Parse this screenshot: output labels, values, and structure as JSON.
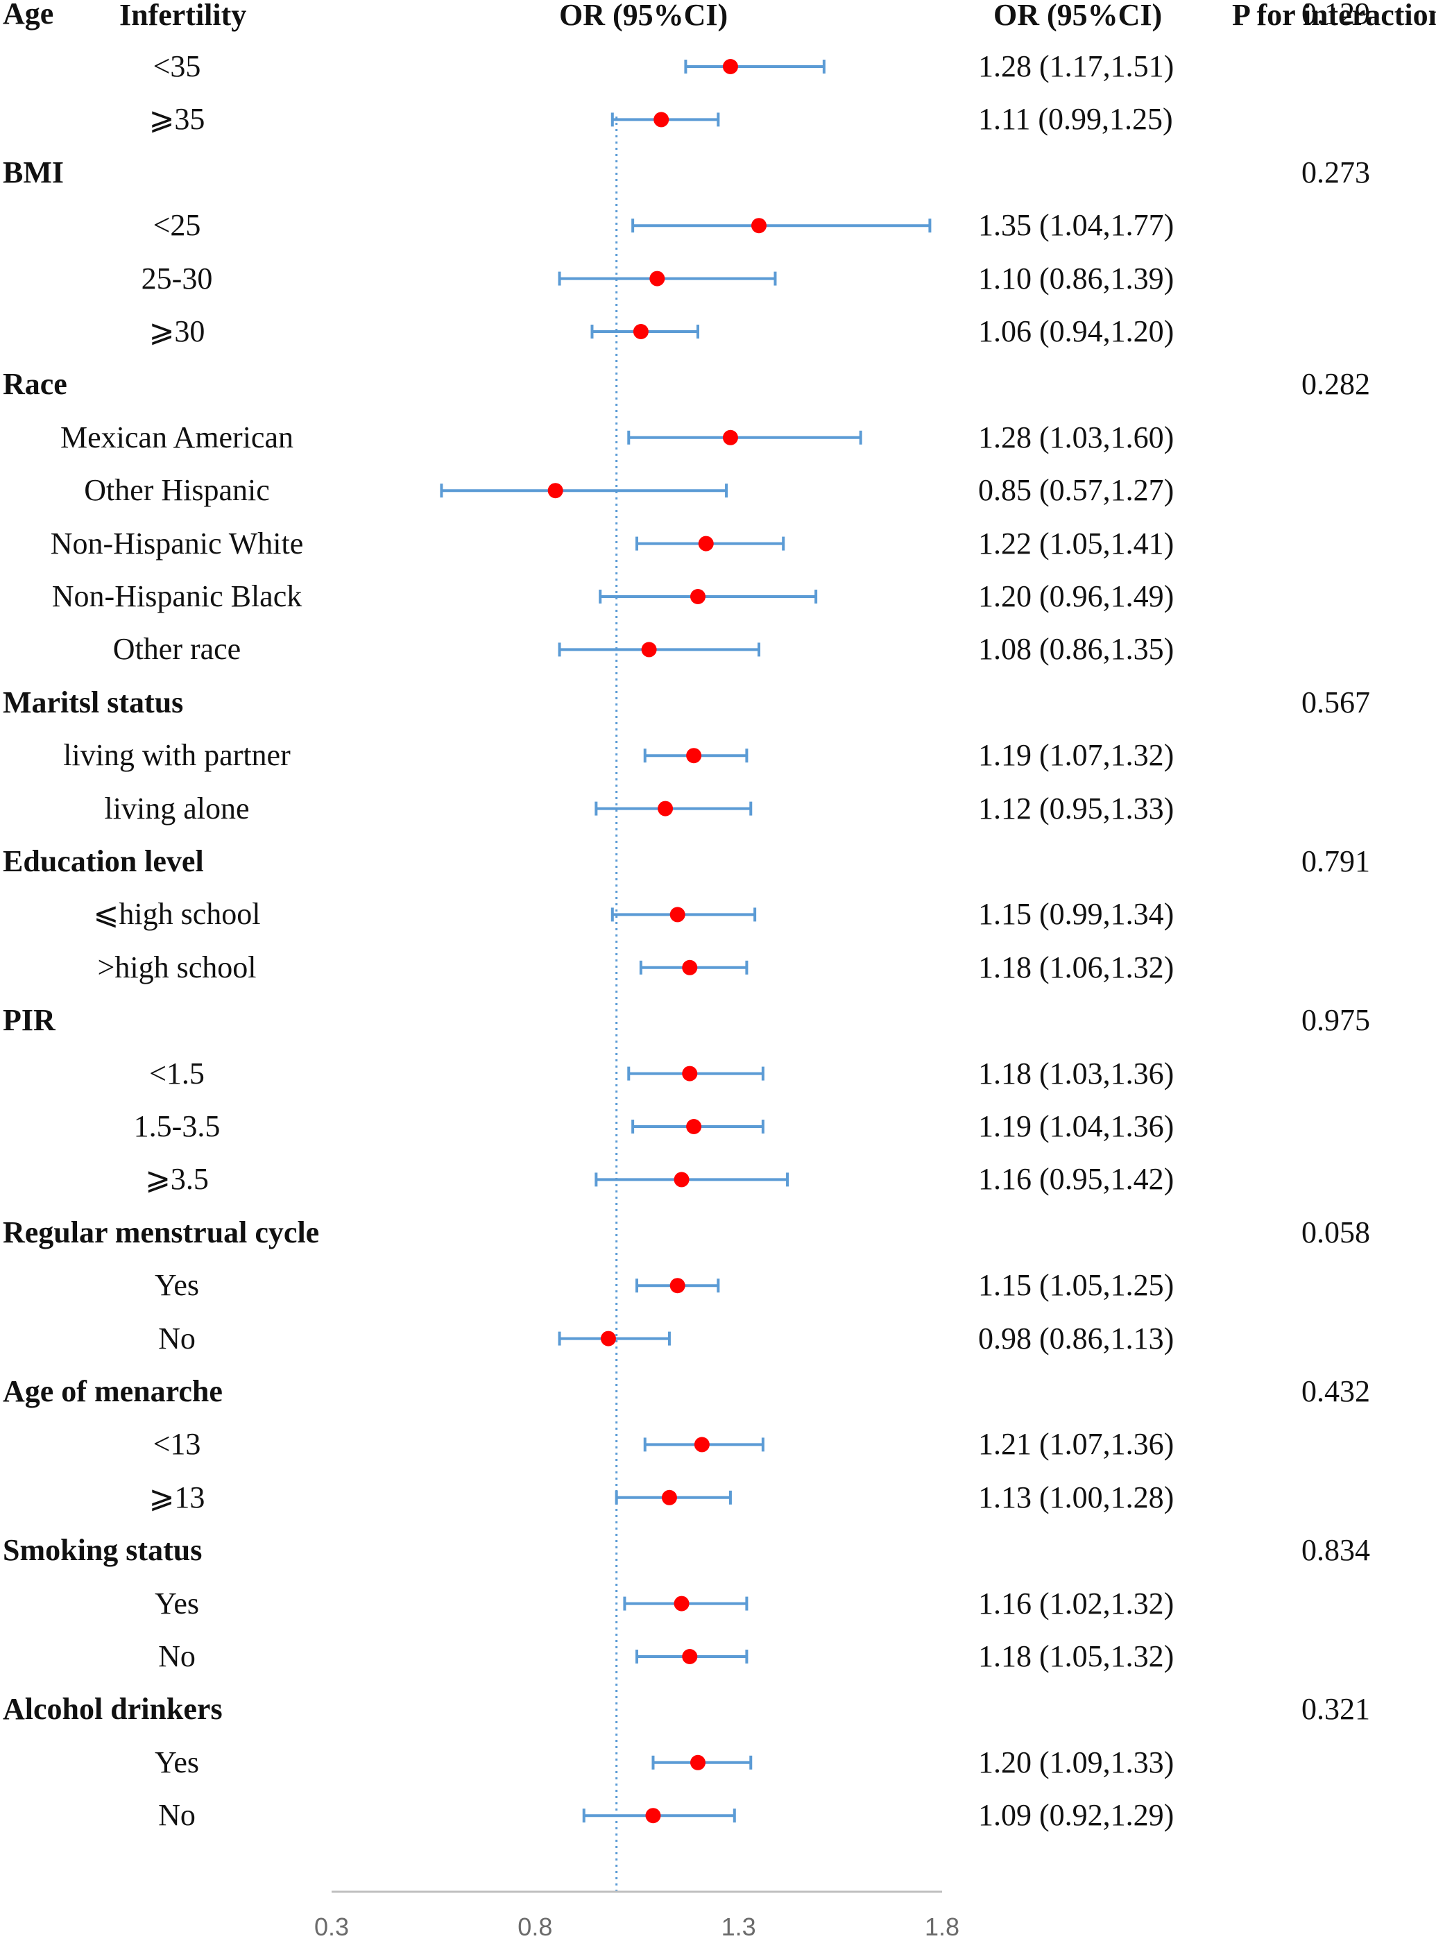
{
  "headers": {
    "label": "Infertility",
    "plot": "OR (95%CI)",
    "or": "OR (95%CI)",
    "p": "P for interaction"
  },
  "colors": {
    "ci_line": "#5b9bd5",
    "point": "#ff0000",
    "ref_line": "#5b9bd5",
    "axis": "#bfbfbf"
  },
  "chart_data": {
    "type": "forest",
    "xlabel": "",
    "ylabel": "",
    "reference_line": 1.0,
    "xlim": [
      0.3,
      1.8
    ],
    "ticks": [
      "0.3",
      "0.8",
      "1.3",
      "1.8"
    ],
    "groups": [
      {
        "name": "Age",
        "p": "0.129",
        "rows": [
          {
            "label": "<35",
            "or": 1.28,
            "lo": 1.17,
            "hi": 1.51,
            "text": "1.28 (1.17,1.51)"
          },
          {
            "label": "⩾35",
            "or": 1.11,
            "lo": 0.99,
            "hi": 1.25,
            "text": "1.11 (0.99,1.25)"
          }
        ]
      },
      {
        "name": "BMI",
        "p": "0.273",
        "rows": [
          {
            "label": "<25",
            "or": 1.35,
            "lo": 1.04,
            "hi": 1.77,
            "text": "1.35 (1.04,1.77)"
          },
          {
            "label": "25-30",
            "or": 1.1,
            "lo": 0.86,
            "hi": 1.39,
            "text": "1.10 (0.86,1.39)"
          },
          {
            "label": "⩾30",
            "or": 1.06,
            "lo": 0.94,
            "hi": 1.2,
            "text": "1.06 (0.94,1.20)"
          }
        ]
      },
      {
        "name": "Race",
        "p": "0.282",
        "rows": [
          {
            "label": "Mexican American",
            "or": 1.28,
            "lo": 1.03,
            "hi": 1.6,
            "text": "1.28 (1.03,1.60)"
          },
          {
            "label": "Other Hispanic",
            "or": 0.85,
            "lo": 0.57,
            "hi": 1.27,
            "text": "0.85 (0.57,1.27)"
          },
          {
            "label": "Non-Hispanic White",
            "or": 1.22,
            "lo": 1.05,
            "hi": 1.41,
            "text": "1.22 (1.05,1.41)"
          },
          {
            "label": "Non-Hispanic Black",
            "or": 1.2,
            "lo": 0.96,
            "hi": 1.49,
            "text": "1.20 (0.96,1.49)"
          },
          {
            "label": "Other race",
            "or": 1.08,
            "lo": 0.86,
            "hi": 1.35,
            "text": "1.08 (0.86,1.35)"
          }
        ]
      },
      {
        "name": "Maritsl status",
        "p": "0.567",
        "rows": [
          {
            "label": "living with partner",
            "or": 1.19,
            "lo": 1.07,
            "hi": 1.32,
            "text": "1.19 (1.07,1.32)"
          },
          {
            "label": "living alone",
            "or": 1.12,
            "lo": 0.95,
            "hi": 1.33,
            "text": "1.12 (0.95,1.33)"
          }
        ]
      },
      {
        "name": "Education level",
        "p": "0.791",
        "rows": [
          {
            "label": "⩽high school",
            "or": 1.15,
            "lo": 0.99,
            "hi": 1.34,
            "text": "1.15 (0.99,1.34)"
          },
          {
            "label": ">high school",
            "or": 1.18,
            "lo": 1.06,
            "hi": 1.32,
            "text": "1.18 (1.06,1.32)"
          }
        ]
      },
      {
        "name": "PIR",
        "p": "0.975",
        "rows": [
          {
            "label": "<1.5",
            "or": 1.18,
            "lo": 1.03,
            "hi": 1.36,
            "text": "1.18 (1.03,1.36)"
          },
          {
            "label": "1.5-3.5",
            "or": 1.19,
            "lo": 1.04,
            "hi": 1.36,
            "text": "1.19 (1.04,1.36)"
          },
          {
            "label": "⩾3.5",
            "or": 1.16,
            "lo": 0.95,
            "hi": 1.42,
            "text": "1.16 (0.95,1.42)"
          }
        ]
      },
      {
        "name": "Regular menstrual cycle",
        "p": "0.058",
        "rows": [
          {
            "label": "Yes",
            "or": 1.15,
            "lo": 1.05,
            "hi": 1.25,
            "text": "1.15 (1.05,1.25)"
          },
          {
            "label": "No",
            "or": 0.98,
            "lo": 0.86,
            "hi": 1.13,
            "text": "0.98 (0.86,1.13)"
          }
        ]
      },
      {
        "name": "Age of menarche",
        "p": "0.432",
        "rows": [
          {
            "label": "<13",
            "or": 1.21,
            "lo": 1.07,
            "hi": 1.36,
            "text": "1.21 (1.07,1.36)"
          },
          {
            "label": "⩾13",
            "or": 1.13,
            "lo": 1.0,
            "hi": 1.28,
            "text": "1.13 (1.00,1.28)"
          }
        ]
      },
      {
        "name": "Smoking status",
        "p": "0.834",
        "rows": [
          {
            "label": "Yes",
            "or": 1.16,
            "lo": 1.02,
            "hi": 1.32,
            "text": "1.16 (1.02,1.32)"
          },
          {
            "label": "No",
            "or": 1.18,
            "lo": 1.05,
            "hi": 1.32,
            "text": "1.18 (1.05,1.32)"
          }
        ]
      },
      {
        "name": "Alcohol drinkers",
        "p": "0.321",
        "rows": [
          {
            "label": "Yes",
            "or": 1.2,
            "lo": 1.09,
            "hi": 1.33,
            "text": "1.20 (1.09,1.33)"
          },
          {
            "label": "No",
            "or": 1.09,
            "lo": 0.92,
            "hi": 1.29,
            "text": "1.09 (0.92,1.29)"
          }
        ]
      }
    ]
  }
}
